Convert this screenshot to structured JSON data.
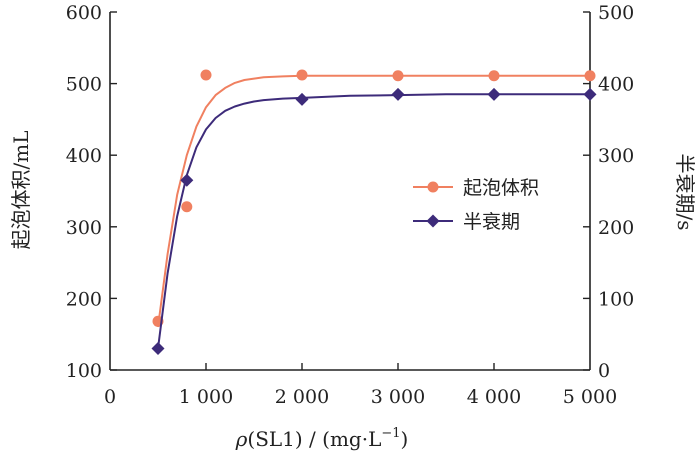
{
  "chart_data": {
    "type": "line",
    "xlabel": "ρ(SL1) / (mg·L⁻¹)",
    "xlabel_parts": {
      "rho": "ρ",
      "main": "(SL1) / (mg",
      "dot": "·",
      "unit_l": "L",
      "sup": "−1",
      "close": ")"
    },
    "ylabel_left": "起泡体积/mL",
    "ylabel_right": "半衰期/s",
    "xlim": [
      0,
      5000
    ],
    "ylim_left": [
      100,
      600
    ],
    "ylim_right": [
      0,
      500
    ],
    "x_ticks": [
      0,
      1000,
      2000,
      3000,
      4000,
      5000
    ],
    "x_tick_labels": [
      "0",
      "1 000",
      "2 000",
      "3 000",
      "4 000",
      "5 000"
    ],
    "y_left_ticks": [
      100,
      200,
      300,
      400,
      500,
      600
    ],
    "y_left_tick_labels": [
      "100",
      "200",
      "300",
      "400",
      "500",
      "600"
    ],
    "y_right_ticks": [
      0,
      100,
      200,
      300,
      400,
      500
    ],
    "y_right_tick_labels": [
      "0",
      "100",
      "200",
      "300",
      "400",
      "500"
    ],
    "legend_placement": "center-right",
    "grid": false,
    "series": [
      {
        "name": "起泡体积",
        "axis": "left",
        "color": "#f08060",
        "marker": "circle",
        "x": [
          500,
          800,
          1000,
          2000,
          3000,
          4000,
          5000
        ],
        "y": [
          168,
          328,
          512,
          512,
          511,
          511,
          511
        ],
        "curve_x": [
          500,
          600,
          700,
          800,
          900,
          1000,
          1100,
          1200,
          1300,
          1400,
          1500,
          1600,
          1800,
          2000,
          2500,
          3000,
          3500,
          4000,
          4500,
          5000
        ],
        "curve_y": [
          160,
          262,
          345,
          400,
          440,
          467,
          484,
          494,
          501,
          505,
          507,
          509,
          510,
          511,
          511,
          511,
          511,
          511,
          511,
          511
        ]
      },
      {
        "name": "半衰期",
        "axis": "right",
        "color": "#3d2b7a",
        "marker": "diamond",
        "x": [
          500,
          800,
          2000,
          3000,
          4000,
          5000
        ],
        "y": [
          30,
          265,
          378,
          385,
          385,
          385
        ],
        "curve_x": [
          500,
          600,
          700,
          800,
          900,
          1000,
          1100,
          1200,
          1300,
          1400,
          1500,
          1600,
          1800,
          2000,
          2500,
          3000,
          3500,
          4000,
          4500,
          5000
        ],
        "curve_y": [
          30,
          135,
          215,
          272,
          311,
          336,
          352,
          362,
          368,
          372,
          375,
          377,
          379,
          380,
          383,
          384,
          385,
          385,
          385,
          385
        ]
      }
    ]
  }
}
